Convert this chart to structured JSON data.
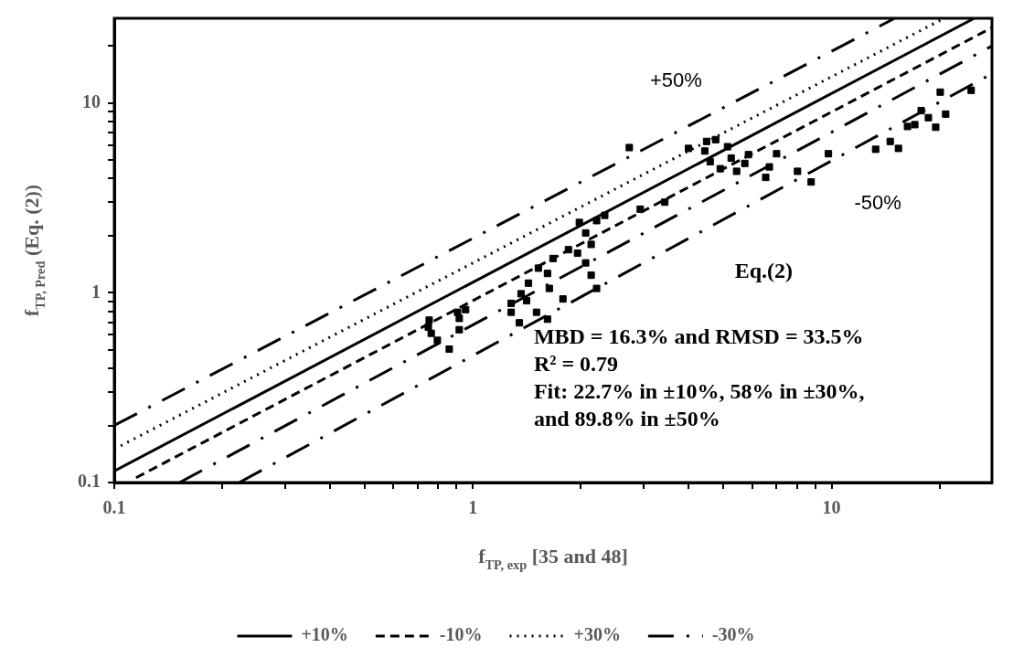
{
  "chart_data": {
    "type": "scatter",
    "xlabel": "f$_{TP, exp}$ [35 and 48]",
    "ylabel": "f$_{TP, Pred}$ (Eq. (2))",
    "log": "xy",
    "grid": false,
    "legend": "bottom",
    "xlim": [
      0.1,
      28
    ],
    "ylim": [
      0.1,
      28
    ],
    "xticks": [
      0.1,
      {
        "value": 0.2,
        "label": null
      },
      {
        "value": 0.3,
        "label": null
      },
      {
        "value": 0.4,
        "label": null
      },
      {
        "value": 0.5,
        "label": null
      },
      {
        "value": 0.6,
        "label": null
      },
      {
        "value": 0.7,
        "label": null
      },
      {
        "value": 0.8,
        "label": null
      },
      {
        "value": 0.9,
        "label": null
      },
      1,
      {
        "value": 2,
        "label": null
      },
      {
        "value": 3,
        "label": null
      },
      {
        "value": 4,
        "label": null
      },
      {
        "value": 5,
        "label": null
      },
      {
        "value": 6,
        "label": null
      },
      {
        "value": 7,
        "label": null
      },
      {
        "value": 8,
        "label": null
      },
      {
        "value": 9,
        "label": null
      },
      10,
      {
        "value": 20,
        "label": null
      }
    ],
    "yticks": [
      0.1,
      {
        "value": 0.2,
        "label": null
      },
      {
        "value": 0.3,
        "label": null
      },
      {
        "value": 0.4,
        "label": null
      },
      {
        "value": 0.5,
        "label": null
      },
      {
        "value": 0.6,
        "label": null
      },
      {
        "value": 0.7,
        "label": null
      },
      {
        "value": 0.8,
        "label": null
      },
      {
        "value": 0.9,
        "label": null
      },
      1,
      {
        "value": 2,
        "label": null
      },
      {
        "value": 3,
        "label": null
      },
      {
        "value": 4,
        "label": null
      },
      {
        "value": 5,
        "label": null
      },
      {
        "value": 6,
        "label": null
      },
      {
        "value": 7,
        "label": null
      },
      {
        "value": 8,
        "label": null
      },
      {
        "value": 9,
        "label": null
      },
      10,
      {
        "value": 20,
        "label": null
      }
    ],
    "series": [
      {
        "color": "#000000",
        "marker": "square",
        "x": [
          0.755,
          0.751,
          0.765,
          0.796,
          0.859,
          0.906,
          0.916,
          0.916,
          0.954,
          1.278,
          1.278,
          1.347,
          1.362,
          1.428,
          1.411,
          1.504,
          1.614,
          1.522,
          1.614,
          1.633,
          1.672,
          1.782,
          1.846,
          1.957,
          1.98,
          2.062,
          2.136,
          2.062,
          2.136,
          2.212,
          2.212,
          2.331,
          2.927,
          3.427,
          2.729,
          3.99,
          4.431,
          4.483,
          4.752,
          4.587,
          4.893,
          5.127,
          5.248,
          5.435,
          5.728,
          5.864,
          7.025,
          6.706,
          6.551,
          8.035,
          8.77,
          9.797,
          13.27,
          15.36,
          14.57,
          16.28,
          17.06,
          18.62,
          19.51,
          20.8,
          17.77,
          20.09,
          24.5
        ],
        "values": [
          0.718,
          0.659,
          0.612,
          0.562,
          0.505,
          0.79,
          0.733,
          0.639,
          0.816,
          0.88,
          0.79,
          0.695,
          0.989,
          1.125,
          0.908,
          0.79,
          0.726,
          1.349,
          1.265,
          1.055,
          1.517,
          0.928,
          1.688,
          1.618,
          2.35,
          2.068,
          1.8,
          1.438,
          1.238,
          1.055,
          2.401,
          2.561,
          2.76,
          3.006,
          5.83,
          5.77,
          5.59,
          6.28,
          6.42,
          4.91,
          4.51,
          5.89,
          5.13,
          4.37,
          4.81,
          5.35,
          5.41,
          4.61,
          4.06,
          4.37,
          3.84,
          5.41,
          5.71,
          5.77,
          6.28,
          7.53,
          7.7,
          8.38,
          7.46,
          8.75,
          9.13,
          11.43,
          11.68
        ]
      },
      {
        "type": "line",
        "name": "+10%",
        "color": "#000000",
        "line_style": "solid",
        "x": [
          0.1,
          25
        ],
        "values": [
          0.115,
          28
        ]
      },
      {
        "type": "line",
        "name": "-10%",
        "color": "#000000",
        "line_style": "dashed",
        "x": [
          0.115,
          28
        ],
        "values": [
          0.106,
          25
        ]
      },
      {
        "type": "line",
        "name": "+30%",
        "color": "#000000",
        "line_style": "dotted",
        "x": [
          0.1,
          20.6
        ],
        "values": [
          0.15,
          28
        ]
      },
      {
        "type": "line",
        "name": "-30%",
        "color": "#000000",
        "line_style": "dashdot",
        "x": [
          0.152,
          28
        ],
        "values": [
          0.1,
          20
        ]
      },
      {
        "type": "line",
        "color": "#000000",
        "line_style": "dashdot",
        "x": [
          0.1,
          15
        ],
        "values": [
          0.2,
          28
        ]
      },
      {
        "type": "line",
        "color": "#000000",
        "line_style": "dashdot",
        "x": [
          0.223,
          28
        ],
        "values": [
          0.1,
          14.3
        ]
      }
    ],
    "annotations": [
      "+50%",
      "-50%",
      "Eq.(2)",
      "MBD = 16.3% and RMSD = 33.5%",
      "R² = 0.79",
      "Fit: 22.7% in ±10%, 58% in ±30%, and 89.8% in ±50%"
    ]
  }
}
